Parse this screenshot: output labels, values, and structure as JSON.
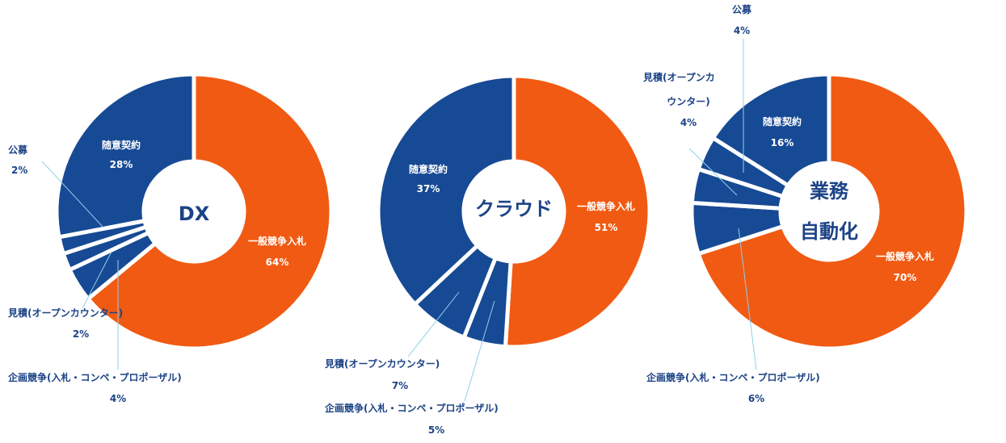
{
  "colors": {
    "orange": "#f15a12",
    "blue": "#174a94",
    "label": "#1c4386",
    "leader": "#8fd0ea"
  },
  "chart_data": [
    {
      "type": "pie",
      "variant": "donut",
      "title": "DX",
      "slices": [
        {
          "key": "general",
          "label": "一般競争入札",
          "value": 64,
          "pct": "64%",
          "color": "orange"
        },
        {
          "key": "planning",
          "label": "企画競争(入札・コンペ・プロポーザル)",
          "value": 4,
          "pct": "4%",
          "color": "blue"
        },
        {
          "key": "estimate",
          "label": "見積(オープンカウンター)",
          "value": 2,
          "pct": "2%",
          "color": "blue"
        },
        {
          "key": "public",
          "label": "公募",
          "value": 2,
          "pct": "2%",
          "color": "blue"
        },
        {
          "key": "negotiated",
          "label": "随意契約",
          "value": 28,
          "pct": "28%",
          "color": "blue"
        }
      ]
    },
    {
      "type": "pie",
      "variant": "donut",
      "title": "クラウド",
      "slices": [
        {
          "key": "general",
          "label": "一般競争入札",
          "value": 51,
          "pct": "51%",
          "color": "orange"
        },
        {
          "key": "planning",
          "label": "企画競争(入札・コンペ・プロポーザル)",
          "value": 5,
          "pct": "5%",
          "color": "blue"
        },
        {
          "key": "estimate",
          "label": "見積(オープンカウンター)",
          "value": 7,
          "pct": "7%",
          "color": "blue"
        },
        {
          "key": "negotiated",
          "label": "随意契約",
          "value": 37,
          "pct": "37%",
          "color": "blue"
        }
      ]
    },
    {
      "type": "pie",
      "variant": "donut",
      "title_lines": [
        "業務",
        "自動化"
      ],
      "slices": [
        {
          "key": "general",
          "label": "一般競争入札",
          "value": 70,
          "pct": "70%",
          "color": "orange"
        },
        {
          "key": "planning",
          "label": "企画競争(入札・コンペ・プロポーザル)",
          "value": 6,
          "pct": "6%",
          "color": "blue"
        },
        {
          "key": "estimate",
          "label_lines": [
            "見積(オープンカ",
            "ウンター)"
          ],
          "value": 4,
          "pct": "4%",
          "color": "blue"
        },
        {
          "key": "public",
          "label": "公募",
          "value": 4,
          "pct": "4%",
          "color": "blue"
        },
        {
          "key": "negotiated",
          "label": "随意契約",
          "value": 16,
          "pct": "16%",
          "color": "blue"
        }
      ]
    }
  ]
}
